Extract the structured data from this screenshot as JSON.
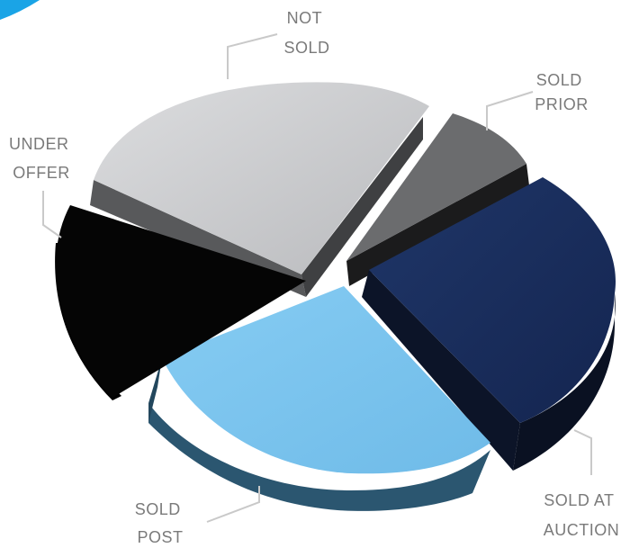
{
  "chart_data": {
    "type": "pie",
    "style": "3d-exploded",
    "slices": [
      {
        "key": "not_sold",
        "label_lines": [
          "NOT",
          "SOLD"
        ],
        "share": 0.27,
        "top_color": "#c8c9cb",
        "side_color": "#58595b"
      },
      {
        "key": "sold_prior",
        "label_lines": [
          "SOLD",
          "PRIOR"
        ],
        "share": 0.07,
        "top_color": "#6b6c6e",
        "side_color": "#1b1b1c"
      },
      {
        "key": "sold_at_auction",
        "label_lines": [
          "SOLD AT",
          "AUCTION"
        ],
        "share": 0.24,
        "top_color": "#1a2f5e",
        "side_color": "#0c1428"
      },
      {
        "key": "sold_post",
        "label_lines": [
          "SOLD",
          "POST"
        ],
        "share": 0.26,
        "top_color": "#7dc5ef",
        "side_color": "#2b5670"
      },
      {
        "key": "under_offer",
        "label_lines": [
          "UNDER",
          "OFFER"
        ],
        "share": 0.16,
        "top_color": "#050505",
        "side_color": "#000000"
      }
    ],
    "accent_color": "#1aa4e6"
  }
}
